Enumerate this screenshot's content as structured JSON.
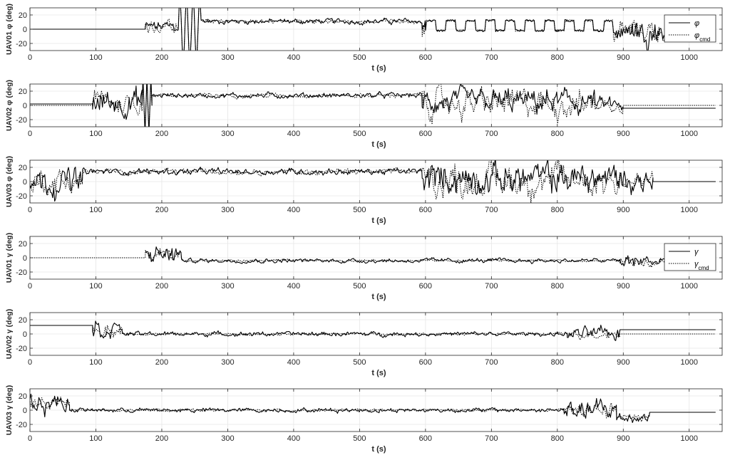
{
  "chart_data": [
    {
      "type": "line",
      "ylabel": "UAV01 φ (deg)",
      "xlabel": "t (s)",
      "xlim": [
        0,
        1050
      ],
      "ylim": [
        -30,
        30
      ],
      "xticks": [
        0,
        100,
        200,
        300,
        400,
        500,
        600,
        700,
        800,
        900,
        1000
      ],
      "yticks": [
        -20,
        0,
        20
      ],
      "grid": true,
      "legend": {
        "position": "top-right",
        "entries": [
          {
            "label": "φ",
            "sub": "",
            "style": "solid"
          },
          {
            "label": "φ",
            "sub": "cmd",
            "style": "dotted"
          }
        ]
      },
      "series": [
        {
          "name": "φ",
          "style": "solid",
          "segments": [
            {
              "start": 0,
              "end": 175,
              "mode": "const",
              "level": 0
            },
            {
              "start": 175,
              "end": 225,
              "mode": "noise",
              "mean": 3,
              "amp": 12
            },
            {
              "start": 225,
              "end": 260,
              "mode": "osc",
              "mean": 0,
              "amp": 45,
              "period": 10
            },
            {
              "start": 260,
              "end": 595,
              "mode": "noise",
              "mean": 11,
              "amp": 5
            },
            {
              "start": 595,
              "end": 600,
              "mode": "noise",
              "mean": 0,
              "amp": 40
            },
            {
              "start": 600,
              "end": 885,
              "mode": "sq",
              "mean": 5,
              "amp": 7,
              "period": 30
            },
            {
              "start": 885,
              "end": 990,
              "mode": "noise",
              "mean": -2,
              "amp": 22
            }
          ]
        },
        {
          "name": "φcmd",
          "style": "dotted",
          "segments": [
            {
              "start": 0,
              "end": 175,
              "mode": "const",
              "level": 0
            },
            {
              "start": 175,
              "end": 225,
              "mode": "noise",
              "mean": 3,
              "amp": 12
            },
            {
              "start": 225,
              "end": 260,
              "mode": "osc",
              "mean": 0,
              "amp": 45,
              "period": 10
            },
            {
              "start": 260,
              "end": 595,
              "mode": "noise",
              "mean": 11,
              "amp": 4
            },
            {
              "start": 595,
              "end": 600,
              "mode": "noise",
              "mean": 0,
              "amp": 35
            },
            {
              "start": 600,
              "end": 885,
              "mode": "sq",
              "mean": 5,
              "amp": 7,
              "period": 30
            },
            {
              "start": 885,
              "end": 990,
              "mode": "noise",
              "mean": -2,
              "amp": 20
            }
          ]
        }
      ]
    },
    {
      "type": "line",
      "ylabel": "UAV02 φ (deg)",
      "xlabel": "t (s)",
      "xlim": [
        0,
        1050
      ],
      "ylim": [
        -30,
        30
      ],
      "xticks": [
        0,
        100,
        200,
        300,
        400,
        500,
        600,
        700,
        800,
        900,
        1000
      ],
      "yticks": [
        -20,
        0,
        20
      ],
      "grid": true,
      "series": [
        {
          "name": "φ",
          "style": "solid",
          "segments": [
            {
              "start": 0,
              "end": 95,
              "mode": "const",
              "level": 2
            },
            {
              "start": 95,
              "end": 170,
              "mode": "noise",
              "mean": 5,
              "amp": 25
            },
            {
              "start": 170,
              "end": 185,
              "mode": "osc",
              "mean": 0,
              "amp": 40,
              "period": 6
            },
            {
              "start": 185,
              "end": 595,
              "mode": "noise",
              "mean": 14,
              "amp": 5
            },
            {
              "start": 595,
              "end": 860,
              "mode": "noise",
              "mean": 5,
              "amp": 22
            },
            {
              "start": 860,
              "end": 900,
              "mode": "noise",
              "mean": 0,
              "amp": 15
            },
            {
              "start": 900,
              "end": 1040,
              "mode": "const",
              "level": -4
            }
          ]
        },
        {
          "name": "φcmd",
          "style": "dotted",
          "segments": [
            {
              "start": 0,
              "end": 95,
              "mode": "const",
              "level": 0
            },
            {
              "start": 95,
              "end": 170,
              "mode": "noise",
              "mean": 5,
              "amp": 22
            },
            {
              "start": 170,
              "end": 185,
              "mode": "osc",
              "mean": 0,
              "amp": 35,
              "period": 6
            },
            {
              "start": 185,
              "end": 595,
              "mode": "noise",
              "mean": 14,
              "amp": 4
            },
            {
              "start": 595,
              "end": 860,
              "mode": "noise",
              "mean": 3,
              "amp": 26
            },
            {
              "start": 860,
              "end": 900,
              "mode": "noise",
              "mean": 0,
              "amp": 12
            },
            {
              "start": 900,
              "end": 1040,
              "mode": "const",
              "level": 0
            }
          ]
        }
      ]
    },
    {
      "type": "line",
      "ylabel": "UAV03 φ (deg)",
      "xlabel": "t (s)",
      "xlim": [
        0,
        1050
      ],
      "ylim": [
        -30,
        30
      ],
      "xticks": [
        0,
        100,
        200,
        300,
        400,
        500,
        600,
        700,
        800,
        900,
        1000
      ],
      "yticks": [
        -20,
        0,
        20
      ],
      "grid": true,
      "series": [
        {
          "name": "φ",
          "style": "solid",
          "segments": [
            {
              "start": 0,
              "end": 80,
              "mode": "noise",
              "mean": 0,
              "amp": 25
            },
            {
              "start": 80,
              "end": 595,
              "mode": "noise",
              "mean": 14,
              "amp": 6
            },
            {
              "start": 595,
              "end": 900,
              "mode": "noise",
              "mean": 5,
              "amp": 28
            },
            {
              "start": 900,
              "end": 945,
              "mode": "noise",
              "mean": 0,
              "amp": 22
            },
            {
              "start": 945,
              "end": 1040,
              "mode": "const",
              "level": 0
            }
          ]
        },
        {
          "name": "φcmd",
          "style": "dotted",
          "segments": [
            {
              "start": 0,
              "end": 80,
              "mode": "noise",
              "mean": 0,
              "amp": 22
            },
            {
              "start": 80,
              "end": 595,
              "mode": "noise",
              "mean": 14,
              "amp": 5
            },
            {
              "start": 595,
              "end": 900,
              "mode": "noise",
              "mean": 2,
              "amp": 30
            },
            {
              "start": 900,
              "end": 945,
              "mode": "noise",
              "mean": 0,
              "amp": 18
            },
            {
              "start": 945,
              "end": 1040,
              "mode": "const",
              "level": 0
            }
          ]
        }
      ]
    },
    {
      "type": "line",
      "ylabel": "UAV01 γ (deg)",
      "xlabel": "t (s)",
      "xlim": [
        0,
        1050
      ],
      "ylim": [
        -30,
        30
      ],
      "xticks": [
        0,
        100,
        200,
        300,
        400,
        500,
        600,
        700,
        800,
        900,
        1000
      ],
      "yticks": [
        -20,
        0,
        20
      ],
      "grid": true,
      "legend": {
        "position": "top-right",
        "entries": [
          {
            "label": "γ",
            "sub": "",
            "style": "solid"
          },
          {
            "label": "γ",
            "sub": "cmd",
            "style": "dotted"
          }
        ]
      },
      "series": [
        {
          "name": "γ",
          "style": "solid",
          "segments": [
            {
              "start": 175,
              "end": 230,
              "mode": "noise",
              "mean": 5,
              "amp": 18
            },
            {
              "start": 230,
              "end": 895,
              "mode": "noise",
              "mean": -4,
              "amp": 4
            },
            {
              "start": 895,
              "end": 980,
              "mode": "noise",
              "mean": -5,
              "amp": 12
            }
          ]
        },
        {
          "name": "γcmd",
          "style": "dotted",
          "segments": [
            {
              "start": 0,
              "end": 175,
              "mode": "const",
              "level": 0
            },
            {
              "start": 175,
              "end": 230,
              "mode": "noise",
              "mean": 3,
              "amp": 12
            },
            {
              "start": 230,
              "end": 895,
              "mode": "noise",
              "mean": -4,
              "amp": 2
            },
            {
              "start": 895,
              "end": 980,
              "mode": "noise",
              "mean": -5,
              "amp": 8
            }
          ]
        }
      ]
    },
    {
      "type": "line",
      "ylabel": "UAV02 γ (deg)",
      "xlabel": "t (s)",
      "xlim": [
        0,
        1050
      ],
      "ylim": [
        -30,
        30
      ],
      "xticks": [
        0,
        100,
        200,
        300,
        400,
        500,
        600,
        700,
        800,
        900,
        1000
      ],
      "yticks": [
        -20,
        0,
        20
      ],
      "grid": true,
      "series": [
        {
          "name": "γ",
          "style": "solid",
          "segments": [
            {
              "start": 0,
              "end": 95,
              "mode": "const",
              "level": 12
            },
            {
              "start": 95,
              "end": 140,
              "mode": "noise",
              "mean": 8,
              "amp": 18
            },
            {
              "start": 140,
              "end": 815,
              "mode": "noise",
              "mean": 0,
              "amp": 4
            },
            {
              "start": 815,
              "end": 895,
              "mode": "noise",
              "mean": 0,
              "amp": 12
            },
            {
              "start": 895,
              "end": 1040,
              "mode": "const",
              "level": 6
            }
          ]
        },
        {
          "name": "γcmd",
          "style": "dotted",
          "segments": [
            {
              "start": 0,
              "end": 95,
              "mode": "const",
              "level": 12
            },
            {
              "start": 95,
              "end": 140,
              "mode": "noise",
              "mean": 8,
              "amp": 14
            },
            {
              "start": 140,
              "end": 815,
              "mode": "noise",
              "mean": 0,
              "amp": 2
            },
            {
              "start": 815,
              "end": 895,
              "mode": "noise",
              "mean": 0,
              "amp": 8
            },
            {
              "start": 895,
              "end": 1040,
              "mode": "const",
              "level": 0
            }
          ]
        }
      ]
    },
    {
      "type": "line",
      "ylabel": "UAV03 γ (deg)",
      "xlabel": "t (s)",
      "xlim": [
        0,
        1050
      ],
      "ylim": [
        -30,
        30
      ],
      "xticks": [
        0,
        100,
        200,
        300,
        400,
        500,
        600,
        700,
        800,
        900,
        1000
      ],
      "yticks": [
        -20,
        0,
        20
      ],
      "grid": true,
      "series": [
        {
          "name": "γ",
          "style": "solid",
          "segments": [
            {
              "start": 0,
              "end": 60,
              "mode": "noise",
              "mean": 10,
              "amp": 18
            },
            {
              "start": 60,
              "end": 810,
              "mode": "noise",
              "mean": 0,
              "amp": 4
            },
            {
              "start": 810,
              "end": 890,
              "mode": "noise",
              "mean": 0,
              "amp": 18
            },
            {
              "start": 890,
              "end": 940,
              "mode": "noise",
              "mean": -10,
              "amp": 10
            },
            {
              "start": 940,
              "end": 1040,
              "mode": "const",
              "level": -3
            }
          ]
        },
        {
          "name": "γcmd",
          "style": "dotted",
          "segments": [
            {
              "start": 0,
              "end": 60,
              "mode": "noise",
              "mean": 10,
              "amp": 14
            },
            {
              "start": 60,
              "end": 810,
              "mode": "noise",
              "mean": 0,
              "amp": 2
            },
            {
              "start": 810,
              "end": 890,
              "mode": "noise",
              "mean": 0,
              "amp": 12
            },
            {
              "start": 890,
              "end": 940,
              "mode": "noise",
              "mean": -10,
              "amp": 6
            },
            {
              "start": 940,
              "end": 1040,
              "mode": "const",
              "level": -3
            }
          ]
        }
      ]
    }
  ]
}
